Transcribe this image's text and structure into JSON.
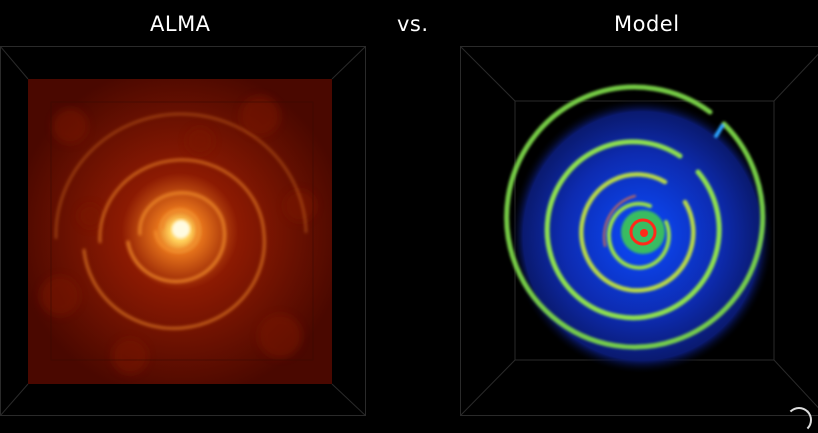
{
  "titles": {
    "left": "ALMA",
    "middle": "vs.",
    "right": "Model"
  },
  "colors": {
    "background": "#000000",
    "alma_low": "#3a0500",
    "alma_mid": "#b52a05",
    "alma_high": "#fff4c0",
    "model_outer": "#1a33c8",
    "model_ring": "#7bd64a",
    "model_core": "#ff2a1a"
  }
}
